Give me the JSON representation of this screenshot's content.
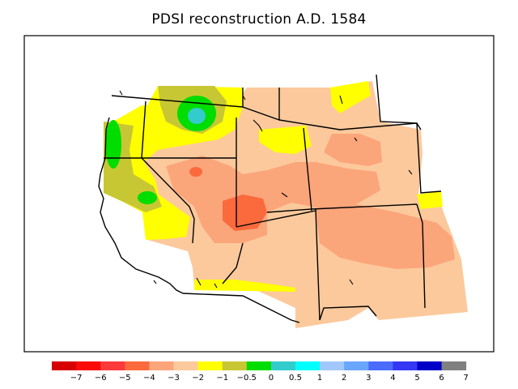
{
  "title": "PDSI reconstruction A.D. 1584",
  "legend": {
    "colors": [
      "#d60000",
      "#fb0a0a",
      "#fb3a3a",
      "#fb6a3c",
      "#fba57b",
      "#fcc99c",
      "#ffff00",
      "#c7c734",
      "#00dd00",
      "#33cccc",
      "#00ffff",
      "#a0c8fb",
      "#6aa6fb",
      "#4b6bfb",
      "#3438f5",
      "#0000c8",
      "#808080"
    ],
    "labels": [
      "−7",
      "−6",
      "−5",
      "−4",
      "−3",
      "−2",
      "−1",
      "−0.5",
      "0",
      "0.5",
      "1",
      "2",
      "3",
      "4",
      "5",
      "6",
      "7"
    ]
  }
}
